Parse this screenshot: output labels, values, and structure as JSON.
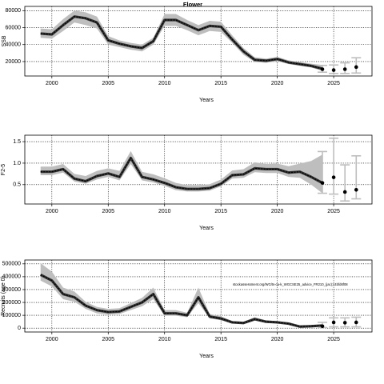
{
  "title": "Flower",
  "chart_data": [
    {
      "type": "line",
      "title": "Flower",
      "xlabel": "Years",
      "ylabel": "SSB",
      "xlim": [
        1997.6,
        2028.4
      ],
      "ylim": [
        3000,
        85000
      ],
      "xticks": [
        2000,
        2005,
        2010,
        2015,
        2020,
        2025
      ],
      "yticks": [
        20000,
        40000,
        60000,
        80000
      ],
      "ytick_labels": [
        "20000",
        "40000",
        "60000",
        "80000"
      ],
      "grid": true,
      "colors": {
        "band": "#bebebe",
        "line": "#000000",
        "forecast_bar": "#bebebe"
      },
      "estimate": {
        "x": [
          1999,
          2000,
          2001,
          2002,
          2003,
          2004,
          2005,
          2006,
          2007,
          2008,
          2009,
          2010,
          2011,
          2012,
          2013,
          2014,
          2015,
          2016,
          2017,
          2018,
          2019,
          2020,
          2021,
          2022,
          2023,
          2024
        ],
        "y": [
          53000,
          52000,
          63000,
          73000,
          71000,
          66000,
          45000,
          41000,
          38000,
          36000,
          44000,
          69000,
          69000,
          63000,
          57000,
          62000,
          61000,
          46000,
          32000,
          22000,
          21000,
          23000,
          19000,
          17000,
          15000,
          11500
        ],
        "lower": [
          48000,
          47000,
          56000,
          66000,
          63000,
          59000,
          40000,
          37000,
          34000,
          32000,
          40000,
          62000,
          62000,
          57000,
          51000,
          56000,
          55000,
          42000,
          28000,
          19500,
          18500,
          20500,
          17000,
          15000,
          13000,
          9000
        ],
        "upper": [
          59000,
          58000,
          70000,
          80000,
          78000,
          73000,
          50000,
          45000,
          42000,
          40000,
          48000,
          76000,
          76000,
          69000,
          63000,
          68000,
          67000,
          51000,
          36000,
          25000,
          23500,
          25500,
          21500,
          19500,
          17500,
          16000
        ]
      },
      "forecast": {
        "x": [
          2024,
          2025,
          2026,
          2027
        ],
        "y": [
          11000,
          10000,
          11000,
          13500
        ],
        "lower": [
          7500,
          6000,
          6000,
          6500
        ],
        "upper": [
          15500,
          16000,
          18500,
          24500
        ]
      }
    },
    {
      "type": "line",
      "title": "",
      "xlabel": "Years",
      "ylabel": "F2-5",
      "xlim": [
        1997.6,
        2028.4
      ],
      "ylim": [
        0.05,
        1.65
      ],
      "xticks": [
        2000,
        2005,
        2010,
        2015,
        2020,
        2025
      ],
      "yticks": [
        0.5,
        1.0,
        1.5
      ],
      "ytick_labels": [
        "0.5",
        "1.0",
        "1.5"
      ],
      "grid": true,
      "colors": {
        "band": "#bebebe",
        "line": "#000000",
        "forecast_bar": "#bebebe"
      },
      "estimate": {
        "x": [
          1999,
          2000,
          2001,
          2002,
          2003,
          2004,
          2005,
          2006,
          2007,
          2008,
          2009,
          2010,
          2011,
          2012,
          2013,
          2014,
          2015,
          2016,
          2017,
          2018,
          2019,
          2020,
          2021,
          2022,
          2023,
          2024
        ],
        "y": [
          0.8,
          0.8,
          0.86,
          0.64,
          0.58,
          0.7,
          0.76,
          0.68,
          1.12,
          0.68,
          0.62,
          0.54,
          0.44,
          0.4,
          0.4,
          0.42,
          0.52,
          0.72,
          0.74,
          0.88,
          0.86,
          0.86,
          0.78,
          0.8,
          0.68,
          0.54
        ],
        "lower": [
          0.72,
          0.72,
          0.78,
          0.57,
          0.52,
          0.62,
          0.68,
          0.6,
          0.98,
          0.6,
          0.55,
          0.47,
          0.37,
          0.34,
          0.34,
          0.36,
          0.46,
          0.64,
          0.66,
          0.79,
          0.77,
          0.77,
          0.68,
          0.66,
          0.5,
          0.3
        ],
        "upper": [
          0.92,
          0.92,
          0.98,
          0.75,
          0.7,
          0.82,
          0.88,
          0.82,
          1.28,
          0.8,
          0.74,
          0.65,
          0.54,
          0.49,
          0.49,
          0.51,
          0.62,
          0.83,
          0.86,
          1.02,
          0.98,
          0.99,
          0.93,
          0.99,
          1.05,
          1.2
        ]
      },
      "forecast": {
        "x": [
          2024,
          2025,
          2026,
          2027
        ],
        "y": [
          0.54,
          0.67,
          0.33,
          0.38
        ],
        "lower": [
          0.3,
          0.28,
          0.12,
          0.17
        ],
        "upper": [
          1.27,
          1.58,
          0.96,
          1.17
        ]
      }
    },
    {
      "type": "line",
      "title": "",
      "xlabel": "Years",
      "ylabel": "Recruits (age 0)",
      "xlim": [
        1997.6,
        2028.4
      ],
      "ylim": [
        -30000,
        530000
      ],
      "xticks": [
        2000,
        2005,
        2010,
        2015,
        2020,
        2025
      ],
      "yticks": [
        0,
        100000,
        200000,
        300000,
        400000,
        500000
      ],
      "ytick_labels": [
        "0",
        "100000",
        "200000",
        "300000",
        "400000",
        "500000"
      ],
      "grid": true,
      "note": "stockassessment.org/WG/ts-ca-k_WGCSE25_advice_FR210_(jac);c4bfd6f08",
      "colors": {
        "band": "#bebebe",
        "line": "#000000",
        "forecast_bar": "#bebebe"
      },
      "estimate": {
        "x": [
          1999,
          2000,
          2001,
          2002,
          2003,
          2004,
          2005,
          2006,
          2007,
          2008,
          2009,
          2010,
          2011,
          2012,
          2013,
          2014,
          2015,
          2016,
          2017,
          2018,
          2019,
          2020,
          2021,
          2022,
          2023,
          2024
        ],
        "y": [
          415000,
          370000,
          265000,
          240000,
          175000,
          140000,
          125000,
          130000,
          165000,
          200000,
          265000,
          115000,
          115000,
          100000,
          240000,
          90000,
          75000,
          45000,
          40000,
          70000,
          50000,
          45000,
          35000,
          12000,
          15000,
          20000
        ],
        "lower": [
          370000,
          325000,
          225000,
          205000,
          150000,
          115000,
          105000,
          110000,
          140000,
          170000,
          225000,
          97000,
          97000,
          85000,
          195000,
          75000,
          62000,
          37000,
          32000,
          58000,
          42000,
          37000,
          28000,
          9000,
          11000,
          12000
        ],
        "upper": [
          505000,
          440000,
          315000,
          285000,
          205000,
          165000,
          150000,
          155000,
          195000,
          235000,
          315000,
          140000,
          140000,
          120000,
          315000,
          110000,
          92000,
          55000,
          50000,
          85000,
          60000,
          55000,
          45000,
          16000,
          21000,
          32000
        ]
      },
      "forecast": {
        "x": [
          2024,
          2025,
          2026,
          2027
        ],
        "y": [
          15000,
          45000,
          42000,
          45000
        ],
        "lower": [
          5000,
          10000,
          10000,
          10000
        ],
        "upper": [
          45000,
          80000,
          80000,
          85000
        ]
      }
    }
  ]
}
